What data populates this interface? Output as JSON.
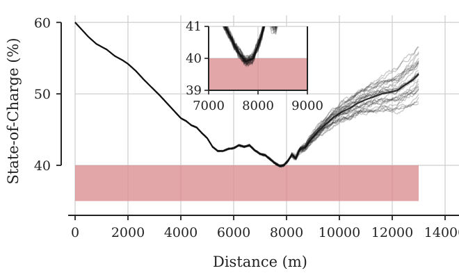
{
  "chart_data": [
    {
      "type": "line",
      "role": "main",
      "xlabel": "Distance (m)",
      "ylabel": "State-of-Charge (%)",
      "xlim": [
        0,
        14000
      ],
      "ylim": [
        33,
        61
      ],
      "xticks": [
        0,
        2000,
        4000,
        6000,
        8000,
        10000,
        12000,
        14000
      ],
      "yticks": [
        40,
        50,
        60
      ],
      "grid": true,
      "threshold_band": {
        "x": [
          0,
          13000
        ],
        "y": [
          35,
          40
        ],
        "color": "#d9888b"
      },
      "series_color": "#111111",
      "trace_count": 30,
      "mean_trace": {
        "x": [
          0,
          300,
          500,
          800,
          1000,
          1200,
          1500,
          1800,
          2000,
          2300,
          2600,
          2900,
          3200,
          3500,
          3800,
          4000,
          4200,
          4400,
          4600,
          4800,
          5000,
          5200,
          5400,
          5600,
          5800,
          6000,
          6200,
          6400,
          6600,
          6800,
          7000,
          7200,
          7400,
          7600,
          7750,
          7900,
          8050,
          8200,
          8350,
          8500,
          8700,
          8900,
          9200,
          9500,
          9800,
          10100,
          10400,
          10700,
          11000,
          11300,
          11600,
          11900,
          12200,
          12500,
          12800,
          13000
        ],
        "y": [
          60.0,
          58.8,
          58.0,
          57.0,
          56.6,
          56.2,
          55.3,
          54.7,
          54.2,
          53.2,
          52.0,
          50.9,
          49.8,
          48.6,
          47.4,
          46.6,
          46.2,
          45.6,
          45.3,
          44.5,
          43.8,
          42.6,
          42.0,
          42.0,
          42.3,
          42.4,
          42.8,
          42.6,
          42.8,
          42.1,
          41.6,
          41.4,
          40.8,
          40.2,
          39.9,
          40.0,
          40.6,
          41.5,
          41.0,
          42.2,
          42.5,
          43.5,
          44.8,
          45.8,
          46.8,
          47.5,
          48.0,
          48.7,
          49.2,
          49.6,
          50.0,
          50.2,
          50.5,
          51.3,
          52.0,
          52.8
        ]
      }
    },
    {
      "type": "line",
      "role": "inset",
      "xlim": [
        7000,
        9000
      ],
      "ylim": [
        39,
        41
      ],
      "xticks": [
        7000,
        8000,
        9000
      ],
      "yticks": [
        39,
        40,
        41
      ],
      "threshold_band": {
        "x": [
          7000,
          9000
        ],
        "y": [
          39,
          40
        ],
        "color": "#d9888b"
      }
    }
  ]
}
